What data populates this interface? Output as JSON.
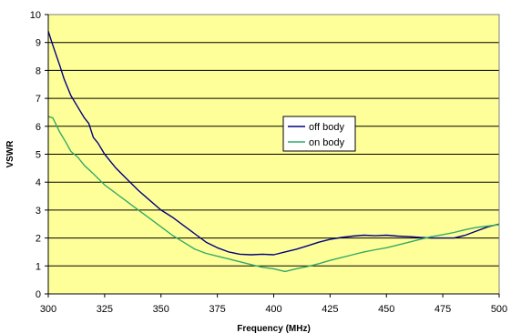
{
  "chart_data": {
    "type": "line",
    "title": "",
    "xlabel": "Frequency (MHz)",
    "ylabel": "VSWR",
    "xlim": [
      300,
      500
    ],
    "ylim": [
      0,
      10
    ],
    "x_ticks": [
      "300",
      "325",
      "350",
      "375",
      "400",
      "425",
      "450",
      "475",
      "500"
    ],
    "y_ticks": [
      "0",
      "1",
      "2",
      "3",
      "4",
      "5",
      "6",
      "7",
      "8",
      "9",
      "10"
    ],
    "grid": "horizontal",
    "legend_position": "center-right",
    "plot_background": "#FFFF99",
    "series": [
      {
        "name": "off body",
        "color": "#000080",
        "x": [
          300,
          302,
          305,
          307,
          310,
          313,
          316,
          318,
          320,
          322,
          325,
          328,
          330,
          335,
          340,
          345,
          350,
          355,
          360,
          365,
          370,
          375,
          380,
          385,
          390,
          395,
          400,
          405,
          410,
          415,
          420,
          425,
          430,
          435,
          440,
          445,
          450,
          455,
          460,
          465,
          470,
          475,
          480,
          485,
          490,
          495,
          500
        ],
        "y": [
          9.4,
          8.9,
          8.2,
          7.7,
          7.1,
          6.7,
          6.3,
          6.1,
          5.6,
          5.4,
          5.0,
          4.7,
          4.5,
          4.1,
          3.7,
          3.35,
          3.0,
          2.75,
          2.45,
          2.15,
          1.85,
          1.65,
          1.5,
          1.42,
          1.4,
          1.42,
          1.4,
          1.5,
          1.6,
          1.72,
          1.85,
          1.95,
          2.02,
          2.07,
          2.1,
          2.08,
          2.1,
          2.07,
          2.05,
          2.02,
          2.0,
          2.0,
          2.0,
          2.1,
          2.25,
          2.4,
          2.5
        ]
      },
      {
        "name": "on body",
        "color": "#33AA66",
        "x": [
          300,
          302,
          305,
          308,
          310,
          313,
          316,
          320,
          325,
          330,
          335,
          340,
          345,
          350,
          355,
          360,
          365,
          370,
          375,
          380,
          385,
          390,
          395,
          400,
          405,
          410,
          415,
          420,
          425,
          430,
          435,
          440,
          445,
          450,
          455,
          460,
          465,
          470,
          475,
          480,
          485,
          490,
          495,
          500
        ],
        "y": [
          6.35,
          6.3,
          5.8,
          5.4,
          5.1,
          4.9,
          4.6,
          4.3,
          3.9,
          3.6,
          3.3,
          3.0,
          2.7,
          2.4,
          2.1,
          1.85,
          1.6,
          1.45,
          1.35,
          1.25,
          1.15,
          1.05,
          0.95,
          0.9,
          0.8,
          0.9,
          0.98,
          1.08,
          1.2,
          1.3,
          1.4,
          1.5,
          1.58,
          1.65,
          1.75,
          1.85,
          1.95,
          2.05,
          2.12,
          2.2,
          2.3,
          2.38,
          2.43,
          2.48
        ]
      }
    ]
  }
}
